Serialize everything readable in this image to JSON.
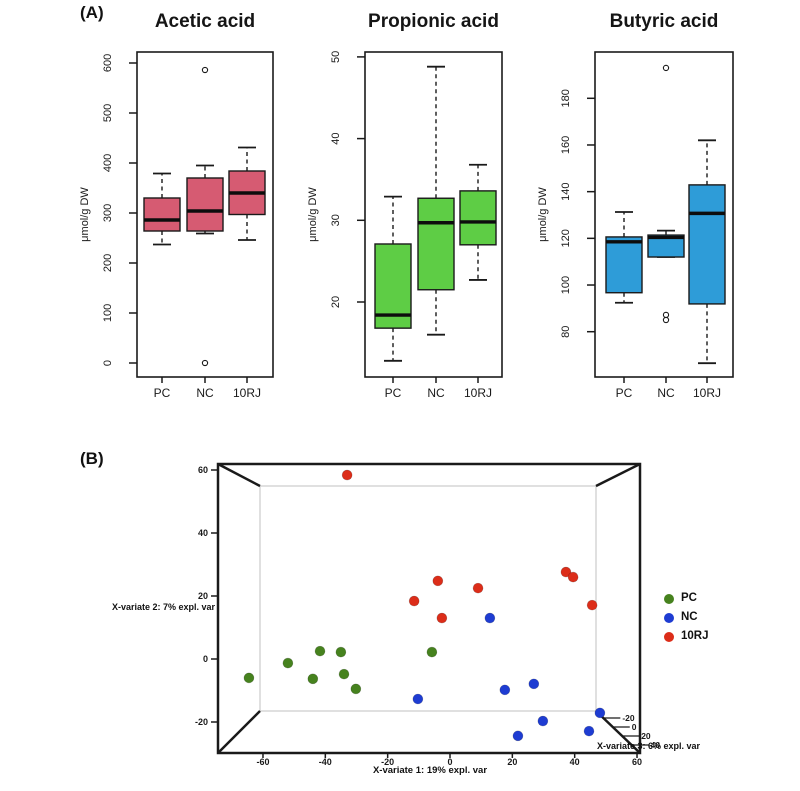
{
  "figure": {
    "panel_a_label": "(A)",
    "panel_b_label": "(B)"
  },
  "chart_data": [
    {
      "id": "acetic",
      "type": "boxplot",
      "title": "Acetic acid",
      "ylabel": "μmol/g DW",
      "categories": [
        "PC",
        "NC",
        "10RJ"
      ],
      "yticks": [
        0,
        100,
        200,
        300,
        400,
        500,
        600
      ],
      "ylim": [
        -28,
        622
      ],
      "box_color": "#d65b72",
      "boxes": [
        {
          "category": "PC",
          "whisker_low": 237,
          "q1": 264,
          "median": 286,
          "q3": 330,
          "whisker_high": 379,
          "outliers": []
        },
        {
          "category": "NC",
          "whisker_low": 259,
          "q1": 264,
          "median": 304,
          "q3": 370,
          "whisker_high": 395,
          "outliers": [
            586,
            0
          ]
        },
        {
          "category": "10RJ",
          "whisker_low": 246,
          "q1": 297,
          "median": 340,
          "q3": 384,
          "whisker_high": 431,
          "outliers": []
        }
      ]
    },
    {
      "id": "propionic",
      "type": "boxplot",
      "title": "Propionic acid",
      "ylabel": "μmol/g DW",
      "categories": [
        "PC",
        "NC",
        "10RJ"
      ],
      "yticks": [
        20,
        30,
        40,
        50
      ],
      "ylim": [
        10.8,
        50.6
      ],
      "box_color": "#5ecd45",
      "boxes": [
        {
          "category": "PC",
          "whisker_low": 12.8,
          "q1": 16.8,
          "median": 18.4,
          "q3": 27.1,
          "whisker_high": 32.9,
          "outliers": []
        },
        {
          "category": "NC",
          "whisker_low": 16.0,
          "q1": 21.5,
          "median": 29.7,
          "q3": 32.7,
          "whisker_high": 48.8,
          "outliers": []
        },
        {
          "category": "10RJ",
          "whisker_low": 22.7,
          "q1": 27.0,
          "median": 29.8,
          "q3": 33.6,
          "whisker_high": 36.8,
          "outliers": []
        }
      ]
    },
    {
      "id": "butyric",
      "type": "boxplot",
      "title": "Butyric acid",
      "ylabel": "μmol/g DW",
      "categories": [
        "PC",
        "NC",
        "10RJ"
      ],
      "yticks": [
        80,
        100,
        120,
        140,
        160,
        180
      ],
      "ylim": [
        60.5,
        200
      ],
      "box_color": "#2e9cd8",
      "boxes": [
        {
          "category": "PC",
          "whisker_low": 92.4,
          "q1": 96.7,
          "median": 118.5,
          "q3": 120.6,
          "whisker_high": 131.3,
          "outliers": []
        },
        {
          "category": "NC",
          "whisker_low": 112,
          "q1": 112,
          "median": 120.4,
          "q3": 121.4,
          "whisker_high": 123.3,
          "outliers": [
            193,
            87.2,
            85
          ]
        },
        {
          "category": "10RJ",
          "whisker_low": 66.5,
          "q1": 91.9,
          "median": 130.7,
          "q3": 142.9,
          "whisker_high": 162,
          "outliers": []
        }
      ]
    },
    {
      "id": "pls_scores_3d",
      "type": "scatter",
      "xlabel": "X-variate 1: 19% expl. var",
      "ylabel": "X-variate 2: 7% expl. var",
      "zlabel": "X-variate 3: 6% expl. var",
      "xticks": [
        -60,
        -40,
        -20,
        0,
        20,
        40,
        60
      ],
      "yticks": [
        -20,
        0,
        20,
        40,
        60
      ],
      "zticks": [
        -20,
        0,
        20,
        40
      ],
      "xlim": [
        -74,
        61
      ],
      "ylim": [
        -30,
        62
      ],
      "legend_position": "right",
      "series": [
        {
          "name": "PC",
          "color": "#46821e",
          "points": [
            [
              -64.5,
              -6.0
            ],
            [
              -52.0,
              -1.3
            ],
            [
              -41.7,
              2.5
            ],
            [
              -35.0,
              2.2
            ],
            [
              -44.0,
              -6.3
            ],
            [
              -34.0,
              -4.8
            ],
            [
              -30.2,
              -9.5
            ],
            [
              -5.8,
              2.2
            ]
          ]
        },
        {
          "name": "NC",
          "color": "#1e3cd2",
          "points": [
            [
              12.8,
              13.0
            ],
            [
              26.9,
              -7.9
            ],
            [
              17.6,
              -9.8
            ],
            [
              -10.3,
              -12.7
            ],
            [
              29.8,
              -19.7
            ],
            [
              48.1,
              -17.1
            ],
            [
              44.6,
              -22.9
            ],
            [
              21.8,
              -24.4
            ]
          ]
        },
        {
          "name": "10RJ",
          "color": "#dc2d19",
          "points": [
            [
              -33.0,
              58.4
            ],
            [
              -11.5,
              18.4
            ],
            [
              -3.9,
              24.8
            ],
            [
              9.0,
              22.5
            ],
            [
              -2.6,
              13.0
            ],
            [
              37.2,
              27.6
            ],
            [
              39.5,
              26.0
            ],
            [
              45.6,
              17.1
            ]
          ]
        }
      ]
    }
  ]
}
